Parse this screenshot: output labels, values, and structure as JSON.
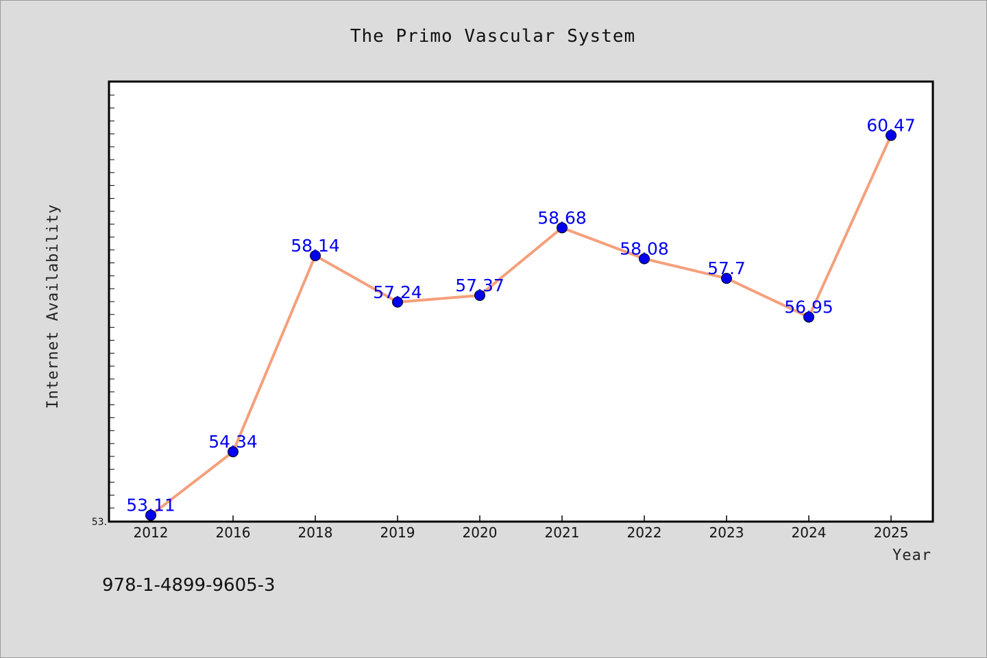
{
  "chart_data": {
    "type": "line",
    "title": "The Primo Vascular System",
    "xlabel": "Year",
    "ylabel": "Internet Availability",
    "categories": [
      "2012",
      "2016",
      "2018",
      "2019",
      "2020",
      "2021",
      "2022",
      "2023",
      "2024",
      "2025"
    ],
    "series": [
      {
        "values": [
          53.11,
          54.34,
          58.14,
          57.24,
          57.37,
          58.68,
          58.08,
          57.7,
          56.95,
          60.47
        ]
      }
    ],
    "data_labels": [
      "53.11",
      "54.34",
      "58.14",
      "57.24",
      "57.37",
      "58.68",
      "58.08",
      "57.7",
      "56.95",
      "60.47"
    ],
    "ylim": [
      53.0,
      61.5
    ],
    "y_tick_label": "53.",
    "grid": false,
    "legend": "none",
    "colors": {
      "line": "#f4a07c",
      "marker": "#0000ee",
      "label": "#0000ee",
      "plot_bg": "#ffffff",
      "page_bg": "#dcdcdc"
    }
  },
  "footer_text": "978-1-4899-9605-3"
}
